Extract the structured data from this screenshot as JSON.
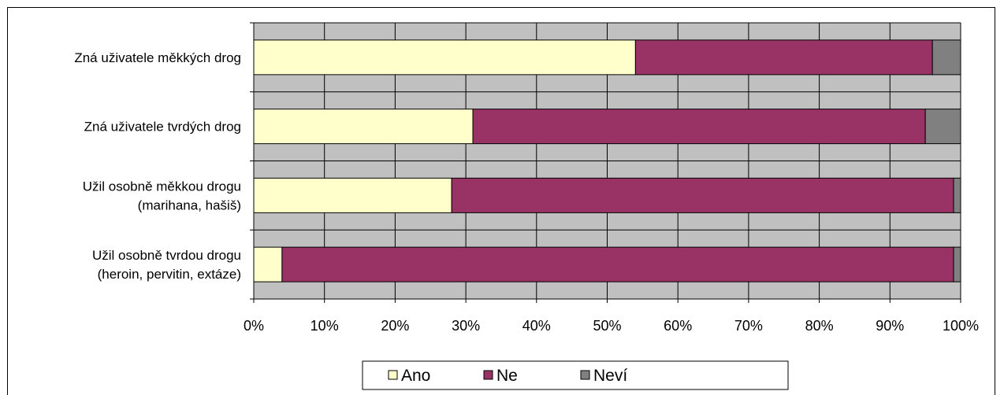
{
  "chart_data": {
    "type": "bar",
    "orientation": "horizontal",
    "stacked": "percent",
    "categories": [
      [
        "Zná uživatele měkkých drog"
      ],
      [
        "Zná uživatele tvrdých drog"
      ],
      [
        "Užil osobně měkkou drogu",
        "(marihana, hašiš)"
      ],
      [
        "Užil osobně tvrdou drogu",
        "(heroin, pervitin, extáze)"
      ]
    ],
    "series": [
      {
        "name": "Ano",
        "color": "#FFFFCC",
        "values": [
          54,
          31,
          28,
          4
        ]
      },
      {
        "name": "Ne",
        "color": "#993366",
        "values": [
          42,
          64,
          71,
          95
        ]
      },
      {
        "name": "Neví",
        "color": "#808080",
        "values": [
          4,
          5,
          1,
          1
        ]
      }
    ],
    "x_ticks": [
      "0%",
      "10%",
      "20%",
      "30%",
      "40%",
      "50%",
      "60%",
      "70%",
      "80%",
      "90%",
      "100%"
    ],
    "xlim": [
      0,
      100
    ],
    "plot_background": "#C0C0C0",
    "grid": true,
    "legend_position": "bottom"
  }
}
